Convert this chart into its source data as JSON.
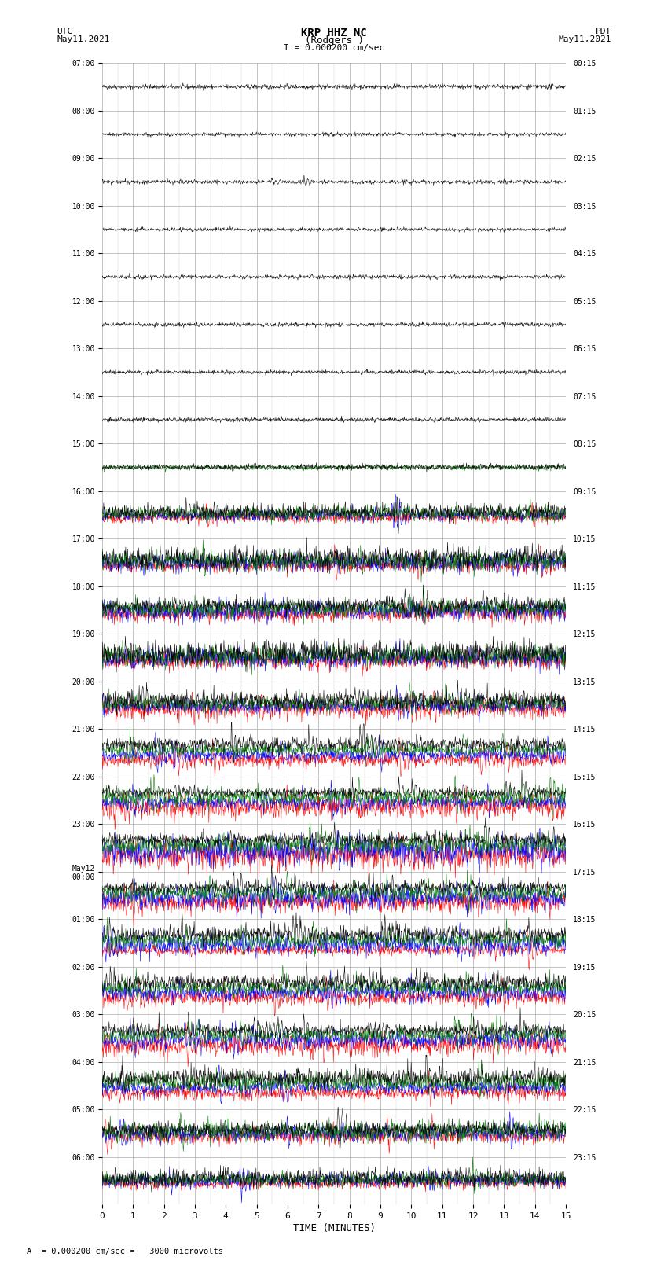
{
  "title_line1": "KRP HHZ NC",
  "title_line2": "(Rodgers )",
  "title_line3": "I = 0.000200 cm/sec",
  "label_left_top": "UTC",
  "label_left_date": "May11,2021",
  "label_right_top": "PDT",
  "label_right_date": "May11,2021",
  "utc_times": [
    "07:00",
    "08:00",
    "09:00",
    "10:00",
    "11:00",
    "12:00",
    "13:00",
    "14:00",
    "15:00",
    "16:00",
    "17:00",
    "18:00",
    "19:00",
    "20:00",
    "21:00",
    "22:00",
    "23:00",
    "May12\n00:00",
    "01:00",
    "02:00",
    "03:00",
    "04:00",
    "05:00",
    "06:00"
  ],
  "pdt_times": [
    "00:15",
    "01:15",
    "02:15",
    "03:15",
    "04:15",
    "05:15",
    "06:15",
    "07:15",
    "08:15",
    "09:15",
    "10:15",
    "11:15",
    "12:15",
    "13:15",
    "14:15",
    "15:15",
    "16:15",
    "17:15",
    "18:15",
    "19:15",
    "20:15",
    "21:15",
    "22:15",
    "23:15"
  ],
  "xlabel": "TIME (MINUTES)",
  "bottom_label": "A |= 0.000200 cm/sec =   3000 microvolts",
  "xmin": 0,
  "xmax": 15,
  "xticks": [
    0,
    1,
    2,
    3,
    4,
    5,
    6,
    7,
    8,
    9,
    10,
    11,
    12,
    13,
    14,
    15
  ],
  "n_rows": 24,
  "colors": [
    "red",
    "blue",
    "green",
    "black"
  ],
  "bg_color": "#ffffff",
  "grid_color": "#aaaaaa"
}
